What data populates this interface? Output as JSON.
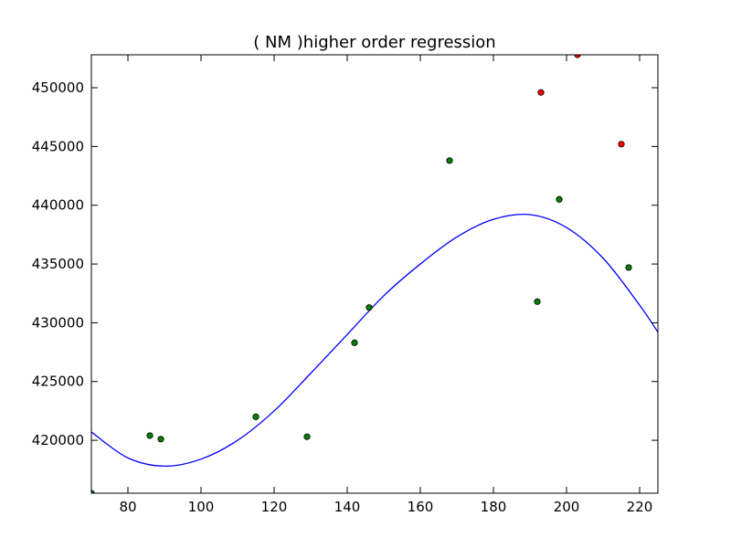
{
  "chart_data": {
    "type": "scatter",
    "title": "(  NM  )higher order regression",
    "xlabel": "",
    "ylabel": "",
    "xlim": [
      70,
      225
    ],
    "ylim": [
      415500,
      452800
    ],
    "xticks": [
      80,
      100,
      120,
      140,
      160,
      180,
      200,
      220
    ],
    "yticks": [
      420000,
      425000,
      430000,
      435000,
      440000,
      445000,
      450000
    ],
    "grid": false,
    "series": [
      {
        "color": "#008000",
        "points": [
          [
            70,
            415500
          ],
          [
            86,
            420400
          ],
          [
            89,
            420100
          ],
          [
            115,
            422000
          ],
          [
            129,
            420300
          ],
          [
            142,
            428300
          ],
          [
            146,
            431300
          ],
          [
            168,
            443800
          ],
          [
            192,
            431800
          ],
          [
            198,
            440500
          ],
          [
            217,
            434700
          ]
        ]
      },
      {
        "color": "#ff0000",
        "points": [
          [
            193,
            449600
          ],
          [
            203,
            452800
          ],
          [
            215,
            445200
          ]
        ]
      }
    ],
    "regression": {
      "color": "#0000ff",
      "curve": [
        [
          70,
          420700
        ],
        [
          80,
          418500
        ],
        [
          90,
          417800
        ],
        [
          100,
          418400
        ],
        [
          110,
          420000
        ],
        [
          120,
          422500
        ],
        [
          130,
          425700
        ],
        [
          140,
          429000
        ],
        [
          150,
          432300
        ],
        [
          160,
          435000
        ],
        [
          170,
          437300
        ],
        [
          180,
          438800
        ],
        [
          190,
          439200
        ],
        [
          200,
          438100
        ],
        [
          210,
          435500
        ],
        [
          220,
          431500
        ],
        [
          225,
          429200
        ]
      ]
    }
  }
}
